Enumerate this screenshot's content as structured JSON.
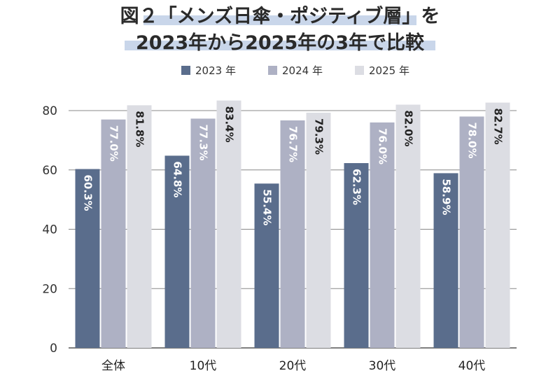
{
  "chart_data": {
    "type": "bar",
    "title_lines": [
      "図２「メンズ日傘・ポジティブ層」を",
      "2023年から2025年の3年で比較"
    ],
    "categories": [
      "全体",
      "10代",
      "20代",
      "30代",
      "40代"
    ],
    "series": [
      {
        "name": "2023 年",
        "color": "#5a6d8c",
        "label_color": "#ffffff",
        "values": [
          60.3,
          64.8,
          55.4,
          62.3,
          58.9
        ],
        "labels": [
          "60.3%",
          "64.8%",
          "55.4%",
          "62.3%",
          "58.9%"
        ]
      },
      {
        "name": "2024 年",
        "color": "#aeb1c4",
        "label_color": "#ffffff",
        "values": [
          77.0,
          77.3,
          76.7,
          76.0,
          78.0
        ],
        "labels": [
          "77.0%",
          "77.3%",
          "76.7%",
          "76.0%",
          "78.0%"
        ]
      },
      {
        "name": "2025 年",
        "color": "#dcdde3",
        "label_color": "#222222",
        "values": [
          81.8,
          83.4,
          79.3,
          82.0,
          82.7
        ],
        "labels": [
          "81.8%",
          "83.4%",
          "79.3%",
          "82.0%",
          "82.7%"
        ]
      }
    ],
    "yticks": [
      "0",
      "20",
      "40",
      "60",
      "80"
    ],
    "ytick_values": [
      0,
      20,
      40,
      60,
      80
    ],
    "ylim": [
      0,
      80
    ],
    "grid": true,
    "legend_position": "top-center",
    "title_highlight_color": "#c9d6ea"
  }
}
